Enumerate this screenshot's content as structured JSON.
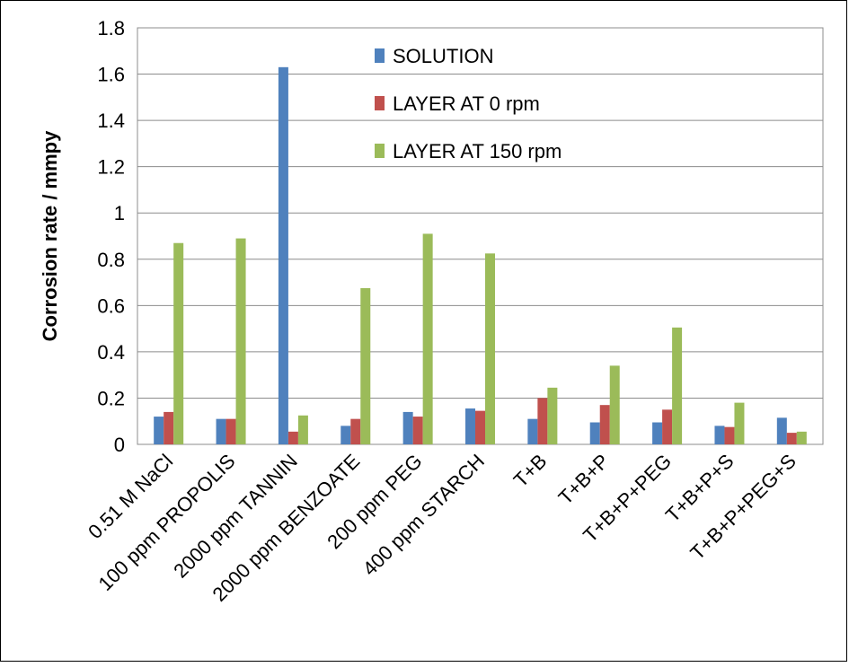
{
  "chart_data": {
    "type": "bar",
    "title": "",
    "xlabel": "",
    "ylabel": "Corrosion rate / mmpy",
    "ylim": [
      0,
      1.8
    ],
    "yticks": [
      0,
      0.2,
      0.4,
      0.6,
      0.8,
      1,
      1.2,
      1.4,
      1.6,
      1.8
    ],
    "ytick_labels": [
      "0",
      "0.2",
      "0.4",
      "0.6",
      "0.8",
      "1",
      "1.2",
      "1.4",
      "1.6",
      "1.8"
    ],
    "grid": true,
    "legend_position": "top-center",
    "categories": [
      "0.51 M NaCl",
      "100 ppm PROPOLIS",
      "2000 ppm TANNIN",
      "2000 ppm BENZOATE",
      "200 ppm PEG",
      "400 ppm STARCH",
      "T+B",
      "T+B+P",
      "T+B+P+PEG",
      "T+B+P+S",
      "T+B+P+PEG+S"
    ],
    "series": [
      {
        "name": "SOLUTION",
        "color": "#4F81BD",
        "values": [
          0.12,
          0.11,
          1.63,
          0.08,
          0.14,
          0.155,
          0.11,
          0.095,
          0.095,
          0.08,
          0.115
        ]
      },
      {
        "name": "LAYER AT 0 rpm",
        "color": "#C0504D",
        "values": [
          0.14,
          0.11,
          0.055,
          0.11,
          0.12,
          0.145,
          0.2,
          0.17,
          0.15,
          0.075,
          0.05
        ]
      },
      {
        "name": "LAYER AT 150 rpm",
        "color": "#9BBB59",
        "values": [
          0.87,
          0.89,
          0.125,
          0.675,
          0.91,
          0.825,
          0.245,
          0.34,
          0.505,
          0.18,
          0.055
        ]
      }
    ]
  }
}
